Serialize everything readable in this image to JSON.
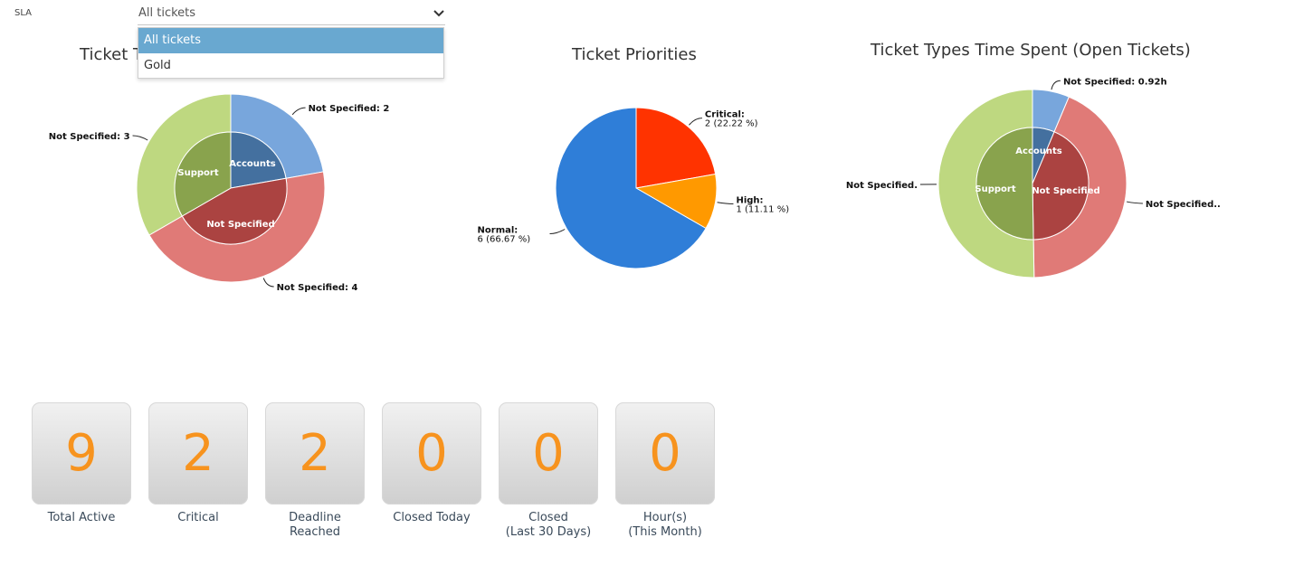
{
  "filter": {
    "label": "SLA",
    "selected": "All tickets",
    "options": [
      "All tickets",
      "Gold"
    ]
  },
  "charts": {
    "ticket_types": {
      "title": "Ticket T"
    },
    "priorities": {
      "title": "Ticket Priorities"
    },
    "time_spent": {
      "title": "Ticket Types Time Spent (Open Tickets)"
    }
  },
  "chart_data": [
    {
      "type": "pie",
      "title": "Ticket T",
      "inner": [
        {
          "name": "Accounts",
          "value": 2,
          "color": "#44709f"
        },
        {
          "name": "Not Specified",
          "value": 4,
          "color": "#ab4341"
        },
        {
          "name": "Support",
          "value": 3,
          "color": "#89a34d"
        }
      ],
      "outer": [
        {
          "label": "Not Specified: 2",
          "value": 2,
          "color": "#78a6dc"
        },
        {
          "label": "Not Specified: 4",
          "value": 4,
          "color": "#e07a77"
        },
        {
          "label": "Not Specified: 3",
          "value": 3,
          "color": "#bed880"
        }
      ]
    },
    {
      "type": "pie",
      "title": "Ticket Priorities",
      "slices": [
        {
          "name": "Critical:",
          "value": 2,
          "text": "2 (22.22 %)",
          "color": "#ff3300"
        },
        {
          "name": "High:",
          "value": 1,
          "text": "1 (11.11 %)",
          "color": "#ff9900"
        },
        {
          "name": "Normal:",
          "value": 6,
          "text": "6 (66.67 %)",
          "color": "#2f7ed8"
        }
      ]
    },
    {
      "type": "pie",
      "title": "Ticket Types Time Spent (Open Tickets)",
      "inner": [
        {
          "name": "Accounts",
          "value": 0.92,
          "color": "#44709f"
        },
        {
          "name": "Not Specified",
          "value": 6.3,
          "color": "#ab4341"
        },
        {
          "name": "Support",
          "value": 7.3,
          "color": "#89a34d"
        }
      ],
      "outer": [
        {
          "label": "Not Specified: 0.92h",
          "value": 0.92,
          "color": "#78a6dc"
        },
        {
          "label": "Not Specified..",
          "value": 6.3,
          "color": "#e07a77"
        },
        {
          "label": "Not Specified.",
          "value": 7.3,
          "color": "#bed880"
        }
      ]
    }
  ],
  "stats": [
    {
      "value": "9",
      "label": "Total Active"
    },
    {
      "value": "2",
      "label": "Critical"
    },
    {
      "value": "2",
      "label": "Deadline\nReached"
    },
    {
      "value": "0",
      "label": "Closed Today"
    },
    {
      "value": "0",
      "label": "Closed\n(Last 30 Days)"
    },
    {
      "value": "0",
      "label": "Hour(s)\n(This Month)"
    }
  ],
  "colors": {
    "accent": "#f7931e",
    "dropdown_selected": "#69a8d0"
  },
  "icons": {
    "chevron": "chevron-down-icon"
  }
}
